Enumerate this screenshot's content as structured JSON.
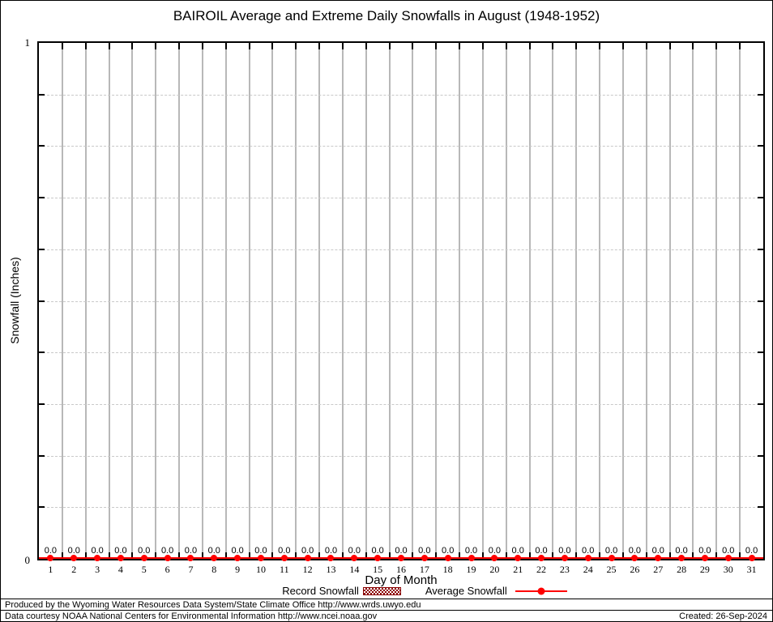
{
  "chart": {
    "title": "BAIROIL Average and Extreme Daily Snowfalls in August (1948-1952)",
    "ylabel": "Snowfall (Inches)",
    "xlabel": "Day of Month",
    "y_tick_top": "1",
    "y_tick_bottom": "0"
  },
  "chart_data": {
    "type": "line",
    "title": "BAIROIL Average and Extreme Daily Snowfalls in August (1948-1952)",
    "xlabel": "Day of Month",
    "ylabel": "Snowfall (Inches)",
    "x": [
      1,
      2,
      3,
      4,
      5,
      6,
      7,
      8,
      9,
      10,
      11,
      12,
      13,
      14,
      15,
      16,
      17,
      18,
      19,
      20,
      21,
      22,
      23,
      24,
      25,
      26,
      27,
      28,
      29,
      30,
      31
    ],
    "series": [
      {
        "name": "Record Snowfall",
        "style": "hatched-bar",
        "values": [
          0,
          0,
          0,
          0,
          0,
          0,
          0,
          0,
          0,
          0,
          0,
          0,
          0,
          0,
          0,
          0,
          0,
          0,
          0,
          0,
          0,
          0,
          0,
          0,
          0,
          0,
          0,
          0,
          0,
          0,
          0
        ]
      },
      {
        "name": "Average Snowfall",
        "style": "line-with-points",
        "values": [
          0,
          0,
          0,
          0,
          0,
          0,
          0,
          0,
          0,
          0,
          0,
          0,
          0,
          0,
          0,
          0,
          0,
          0,
          0,
          0,
          0,
          0,
          0,
          0,
          0,
          0,
          0,
          0,
          0,
          0,
          0
        ]
      }
    ],
    "point_labels": [
      "0.0",
      "0.0",
      "0.0",
      "0.0",
      "0.0",
      "0.0",
      "0.0",
      "0.0",
      "0.0",
      "0.0",
      "0.0",
      "0.0",
      "0.0",
      "0.0",
      "0.0",
      "0.0",
      "0.0",
      "0.0",
      "0.0",
      "0.0",
      "0.0",
      "0.0",
      "0.0",
      "0.0",
      "0.0",
      "0.0",
      "0.0",
      "0.0",
      "0.0",
      "0.0",
      "0.0"
    ],
    "ylim": [
      0,
      1
    ],
    "y_major_tick_labels": [
      "0",
      "1"
    ],
    "y_minor_step": 0.1,
    "grid": true,
    "legend_position": "bottom"
  },
  "legend": {
    "record_label": "Record Snowfall",
    "average_label": "Average Snowfall"
  },
  "footer": {
    "line1": "Produced by the Wyoming Water Resources Data System/State Climate Office http://www.wrds.uwyo.edu",
    "line2": "Data courtesy NOAA National Centers for Environmental Information http://www.ncei.noaa.gov",
    "created": "Created: 26-Sep-2024"
  },
  "colors": {
    "average_line": "#ff0000",
    "record_fill": "#8b0000",
    "grid_vertical": "#b8b8b8",
    "grid_horizontal": "#c9c9c9"
  }
}
